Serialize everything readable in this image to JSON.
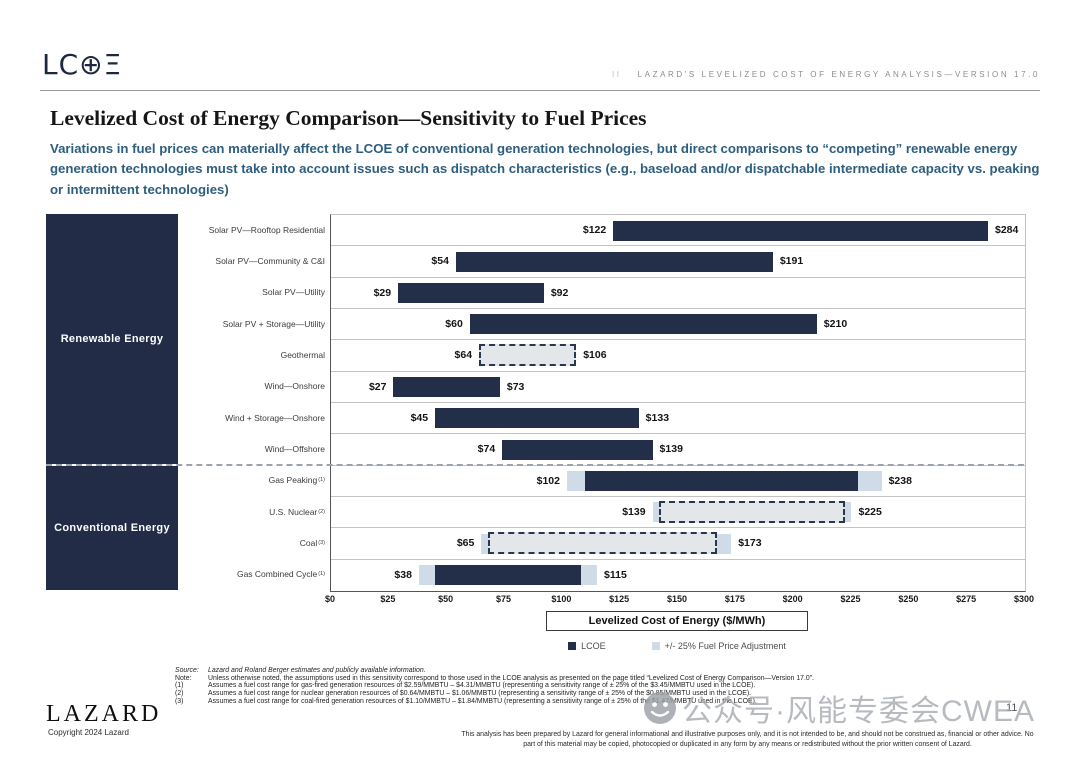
{
  "header": {
    "logo": "LC⊕Ξ",
    "section_marker": "II",
    "right_label": "LAZARD'S LEVELIZED COST OF ENERGY ANALYSIS—VERSION 17.0"
  },
  "title": "Levelized Cost of Energy Comparison—Sensitivity to Fuel Prices",
  "subtitle": "Variations in fuel prices can materially affect the LCOE of conventional generation technologies, but direct comparisons to “competing” renewable energy generation technologies must take into account issues such as dispatch characteristics (e.g., baseload and/or dispatchable intermediate capacity vs. peaking or intermittent technologies)",
  "chart_data": {
    "type": "bar",
    "orientation": "horizontal",
    "xlabel": "Levelized Cost of Energy ($/MWh)",
    "xlim": [
      0,
      300
    ],
    "xtick_step": 25,
    "xticks": [
      "$0",
      "$25",
      "$50",
      "$75",
      "$100",
      "$125",
      "$150",
      "$175",
      "$200",
      "$225",
      "$250",
      "$275",
      "$300"
    ],
    "legend": [
      {
        "label": "LCOE",
        "color": "#232e49"
      },
      {
        "label": "+/- 25% Fuel Price Adjustment",
        "color": "#cfdce8"
      }
    ],
    "colors": {
      "lcoe_navy": "#232e49",
      "fuel_adjustment_blue": "#cfdce8",
      "dashed_fill": "#e4e7ea",
      "subtitle_blue": "#2e5e7e"
    },
    "groups": [
      {
        "label": "Renewable Energy",
        "rows": [
          {
            "label": "Solar PV—Rooftop Residential",
            "sup": "",
            "style": "solid",
            "lcoe_low": 122,
            "lcoe_high": 284,
            "fuel_low": null,
            "fuel_high": null,
            "low_label": "$122",
            "high_label": "$284"
          },
          {
            "label": "Solar PV—Community & C&I",
            "sup": "",
            "style": "solid",
            "lcoe_low": 54,
            "lcoe_high": 191,
            "fuel_low": null,
            "fuel_high": null,
            "low_label": "$54",
            "high_label": "$191"
          },
          {
            "label": "Solar PV—Utility",
            "sup": "",
            "style": "solid",
            "lcoe_low": 29,
            "lcoe_high": 92,
            "fuel_low": null,
            "fuel_high": null,
            "low_label": "$29",
            "high_label": "$92"
          },
          {
            "label": "Solar PV + Storage—Utility",
            "sup": "",
            "style": "solid",
            "lcoe_low": 60,
            "lcoe_high": 210,
            "fuel_low": null,
            "fuel_high": null,
            "low_label": "$60",
            "high_label": "$210"
          },
          {
            "label": "Geothermal",
            "sup": "",
            "style": "dashed",
            "lcoe_low": 64,
            "lcoe_high": 106,
            "fuel_low": null,
            "fuel_high": null,
            "low_label": "$64",
            "high_label": "$106"
          },
          {
            "label": "Wind—Onshore",
            "sup": "",
            "style": "solid",
            "lcoe_low": 27,
            "lcoe_high": 73,
            "fuel_low": null,
            "fuel_high": null,
            "low_label": "$27",
            "high_label": "$73"
          },
          {
            "label": "Wind + Storage—Onshore",
            "sup": "",
            "style": "solid",
            "lcoe_low": 45,
            "lcoe_high": 133,
            "fuel_low": null,
            "fuel_high": null,
            "low_label": "$45",
            "high_label": "$133"
          },
          {
            "label": "Wind—Offshore",
            "sup": "",
            "style": "solid",
            "lcoe_low": 74,
            "lcoe_high": 139,
            "fuel_low": null,
            "fuel_high": null,
            "low_label": "$74",
            "high_label": "$139"
          }
        ]
      },
      {
        "label": "Conventional Energy",
        "rows": [
          {
            "label": "Gas Peaking",
            "sup": "(1)",
            "style": "solid",
            "lcoe_low": 110,
            "lcoe_high": 228,
            "fuel_low": 102,
            "fuel_high": 238,
            "low_label": "$102",
            "high_label": "$238"
          },
          {
            "label": "U.S. Nuclear",
            "sup": "(2)",
            "style": "dashed",
            "lcoe_low": 142,
            "lcoe_high": 222,
            "fuel_low": 139,
            "fuel_high": 225,
            "low_label": "$139",
            "high_label": "$225"
          },
          {
            "label": "Coal",
            "sup": "(3)",
            "style": "dashed",
            "lcoe_low": 68,
            "lcoe_high": 167,
            "fuel_low": 65,
            "fuel_high": 173,
            "low_label": "$65",
            "high_label": "$173"
          },
          {
            "label": "Gas Combined Cycle",
            "sup": "(1)",
            "style": "solid",
            "lcoe_low": 45,
            "lcoe_high": 108,
            "fuel_low": 38,
            "fuel_high": 115,
            "low_label": "$38",
            "high_label": "$115"
          }
        ]
      }
    ]
  },
  "footnotes": [
    {
      "label": "Source:",
      "text": "Lazard and Roland Berger estimates and publicly available information.",
      "italic": true
    },
    {
      "label": "Note:",
      "text": "Unless otherwise noted, the assumptions used in this sensitivity correspond to those used in the LCOE analysis as presented on the page titled “Levelized Cost of Energy Comparison—Version 17.0”.",
      "italic": false
    },
    {
      "label": "(1)",
      "text": "Assumes a fuel cost range for gas-fired generation resources of $2.59/MMBTU – $4.31/MMBTU (representing a sensitivity range of ± 25% of the $3.45/MMBTU used in the LCOE).",
      "italic": false
    },
    {
      "label": "(2)",
      "text": "Assumes a fuel cost range for nuclear generation resources of $0.64/MMBTU – $1.06/MMBTU (representing a sensitivity range of ± 25% of the $0.85/MMBTU used in the LCOE).",
      "italic": false
    },
    {
      "label": "(3)",
      "text": "Assumes a fuel cost range for coal-fired generation resources of $1.10/MMBTU – $1.84/MMBTU (representing a sensitivity range of ± 25% of the $1.47/MMBTU used in the LCOE).",
      "italic": false
    }
  ],
  "footer": {
    "brand": "LAZARD",
    "copyright": "Copyright 2024 Lazard",
    "disclaimer": "This analysis has been prepared by Lazard for general informational and illustrative purposes only, and it is not intended to be, and should not be construed as, financial or other advice. No part of this material may be copied, photocopied or duplicated in any form by any means or redistributed without the prior written consent of Lazard.",
    "page_number": "11"
  },
  "watermark": {
    "icon": "wechat-smiley-icon",
    "text": "公众号·风能专委会CWEA"
  }
}
